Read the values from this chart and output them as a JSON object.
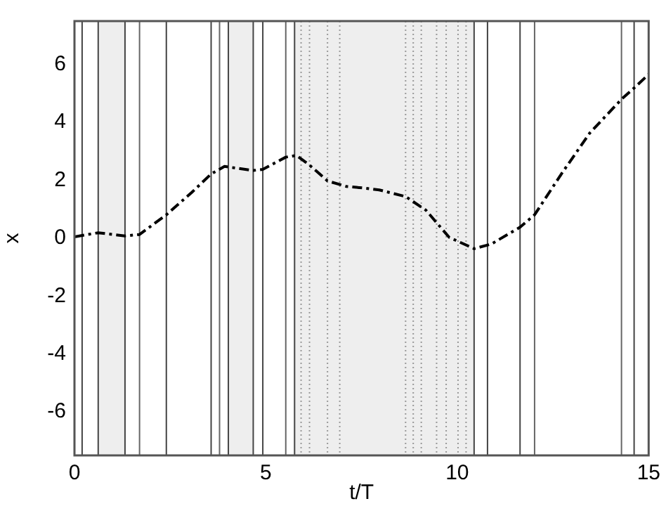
{
  "chart_data": {
    "type": "line",
    "xlabel": "t/T",
    "ylabel": "x",
    "xlim": [
      0,
      15
    ],
    "ylim": [
      -7.5,
      7.5
    ],
    "xticks": [
      0,
      5,
      10,
      15
    ],
    "yticks": [
      -6,
      -4,
      -2,
      0,
      2,
      4,
      6
    ],
    "grid": false,
    "legend": false,
    "marker": "none",
    "line_style": "dashed",
    "series": [
      {
        "color": "#000000",
        "x": [
          0,
          0.62,
          1.32,
          1.7,
          2.4,
          3.07,
          3.57,
          3.92,
          4.67,
          4.92,
          5.52,
          5.8,
          6.12,
          6.61,
          7.1,
          7.59,
          7.96,
          8.65,
          9.18,
          9.79,
          10.44,
          10.89,
          11.64,
          12.02,
          12.72,
          13.46,
          14.29,
          14.62,
          15
        ],
        "values": [
          0.05,
          0.19,
          0.08,
          0.13,
          0.81,
          1.59,
          2.22,
          2.48,
          2.34,
          2.38,
          2.8,
          2.86,
          2.55,
          1.98,
          1.79,
          1.73,
          1.67,
          1.44,
          0.97,
          0.03,
          -0.36,
          -0.2,
          0.38,
          0.81,
          2.22,
          3.63,
          4.8,
          5.19,
          5.66
        ]
      }
    ],
    "bands": [
      {
        "axis": "x",
        "from": 0.62,
        "to": 1.32,
        "color": "#eeeeee"
      },
      {
        "axis": "x",
        "from": 4.02,
        "to": 4.67,
        "color": "#eeeeee"
      },
      {
        "axis": "x",
        "from": 5.75,
        "to": 10.44,
        "color": "#eeeeee"
      }
    ],
    "ref_lines": [
      {
        "axis": "x",
        "value": 0.2,
        "color": "#444444",
        "line_style": "solid"
      },
      {
        "axis": "x",
        "value": 0.62,
        "color": "#444444",
        "line_style": "solid"
      },
      {
        "axis": "x",
        "value": 1.32,
        "color": "#444444",
        "line_style": "solid"
      },
      {
        "axis": "x",
        "value": 1.7,
        "color": "#666666",
        "line_style": "solid"
      },
      {
        "axis": "x",
        "value": 2.4,
        "color": "#444444",
        "line_style": "solid"
      },
      {
        "axis": "x",
        "value": 3.57,
        "color": "#444444",
        "line_style": "solid"
      },
      {
        "axis": "x",
        "value": 3.79,
        "color": "#666666",
        "line_style": "solid"
      },
      {
        "axis": "x",
        "value": 4.02,
        "color": "#444444",
        "line_style": "solid"
      },
      {
        "axis": "x",
        "value": 4.67,
        "color": "#444444",
        "line_style": "solid"
      },
      {
        "axis": "x",
        "value": 4.92,
        "color": "#444444",
        "line_style": "solid"
      },
      {
        "axis": "x",
        "value": 5.52,
        "color": "#666666",
        "line_style": "solid"
      },
      {
        "axis": "x",
        "value": 5.75,
        "color": "#444444",
        "line_style": "solid"
      },
      {
        "axis": "x",
        "value": 5.92,
        "color": "#999999",
        "line_style": "dotted"
      },
      {
        "axis": "x",
        "value": 6.14,
        "color": "#999999",
        "line_style": "dotted"
      },
      {
        "axis": "x",
        "value": 6.61,
        "color": "#999999",
        "line_style": "dotted"
      },
      {
        "axis": "x",
        "value": 6.93,
        "color": "#999999",
        "line_style": "dotted"
      },
      {
        "axis": "x",
        "value": 8.65,
        "color": "#999999",
        "line_style": "dotted"
      },
      {
        "axis": "x",
        "value": 8.85,
        "color": "#999999",
        "line_style": "dotted"
      },
      {
        "axis": "x",
        "value": 9.06,
        "color": "#999999",
        "line_style": "dotted"
      },
      {
        "axis": "x",
        "value": 9.46,
        "color": "#999999",
        "line_style": "dotted"
      },
      {
        "axis": "x",
        "value": 9.71,
        "color": "#999999",
        "line_style": "dotted"
      },
      {
        "axis": "x",
        "value": 10.02,
        "color": "#999999",
        "line_style": "dotted"
      },
      {
        "axis": "x",
        "value": 10.23,
        "color": "#999999",
        "line_style": "dotted"
      },
      {
        "axis": "x",
        "value": 10.44,
        "color": "#444444",
        "line_style": "solid"
      },
      {
        "axis": "x",
        "value": 10.79,
        "color": "#444444",
        "line_style": "solid"
      },
      {
        "axis": "x",
        "value": 11.64,
        "color": "#444444",
        "line_style": "solid"
      },
      {
        "axis": "x",
        "value": 12.02,
        "color": "#666666",
        "line_style": "solid"
      },
      {
        "axis": "x",
        "value": 14.29,
        "color": "#666666",
        "line_style": "solid"
      },
      {
        "axis": "x",
        "value": 14.62,
        "color": "#444444",
        "line_style": "solid"
      }
    ]
  }
}
